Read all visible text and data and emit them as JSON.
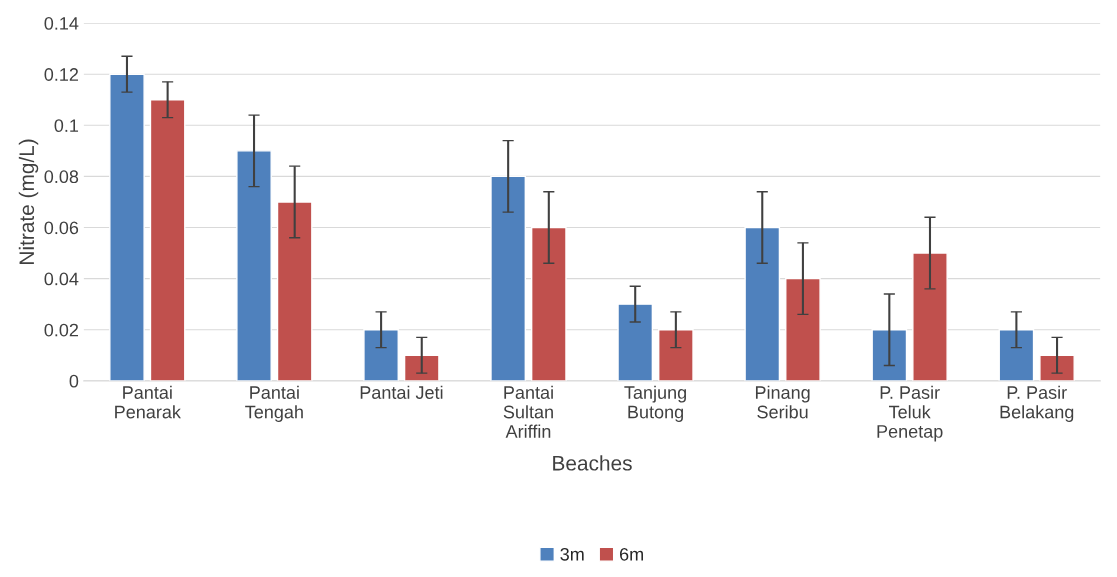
{
  "chart_data": {
    "type": "bar",
    "xlabel": "Beaches",
    "ylabel": "Nitrate (mg/L)",
    "categories": [
      "Pantai\nPenarak",
      "Pantai\nTengah",
      "Pantai Jeti",
      "Pantai\nSultan\nAriffin",
      "Tanjung\nButong",
      "Pinang\nSeribu",
      "P. Pasir\nTeluk\nPenetap",
      "P. Pasir\nBelakang"
    ],
    "series": [
      {
        "name": "3m",
        "color": "#4f81bd",
        "values": [
          0.12,
          0.09,
          0.02,
          0.08,
          0.03,
          0.06,
          0.02,
          0.02
        ],
        "errors": [
          0.007,
          0.014,
          0.007,
          0.014,
          0.007,
          0.014,
          0.014,
          0.007
        ]
      },
      {
        "name": "6m",
        "color": "#c0504d",
        "values": [
          0.11,
          0.07,
          0.01,
          0.06,
          0.02,
          0.04,
          0.05,
          0.01
        ],
        "errors": [
          0.007,
          0.014,
          0.007,
          0.014,
          0.007,
          0.014,
          0.014,
          0.007
        ]
      }
    ],
    "ylim": [
      0,
      0.14
    ],
    "yticks": [
      {
        "value": 0,
        "label": "0"
      },
      0.02,
      0.04,
      0.06,
      0.08,
      {
        "value": 0.1,
        "label": "0.1"
      },
      0.12,
      0.14
    ],
    "grid": "y",
    "legend": "bottom"
  }
}
